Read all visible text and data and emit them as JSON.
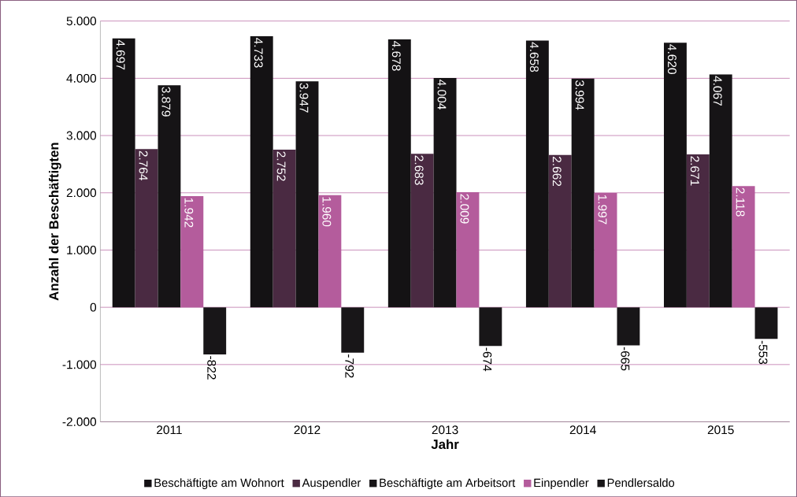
{
  "chart_data": {
    "type": "bar",
    "xlabel": "Jahr",
    "ylabel": "Anzahl der Beschäftigten",
    "categories": [
      "2011",
      "2012",
      "2013",
      "2014",
      "2015"
    ],
    "series": [
      {
        "name": "Beschäftigte am Wohnort",
        "color": "#141214",
        "values": [
          4697,
          4733,
          4678,
          4658,
          4620
        ],
        "value_labels": [
          "4.697",
          "4.733",
          "4.678",
          "4.658",
          "4.620"
        ]
      },
      {
        "name": "Auspendler",
        "color": "#4a2a42",
        "values": [
          2764,
          2752,
          2683,
          2662,
          2671
        ],
        "value_labels": [
          "2.764",
          "2.752",
          "2.683",
          "2.662",
          "2.671"
        ]
      },
      {
        "name": "Beschäftigte am Arbeitsort",
        "color": "#161416",
        "values": [
          3879,
          3947,
          4004,
          3994,
          4067
        ],
        "value_labels": [
          "3.879",
          "3.947",
          "4.004",
          "3.994",
          "4.067"
        ]
      },
      {
        "name": "Einpendler",
        "color": "#b45c9c",
        "values": [
          1942,
          1960,
          2009,
          1997,
          2118
        ],
        "value_labels": [
          "1.942",
          "1.960",
          "2.009",
          "1.997",
          "2.118"
        ]
      },
      {
        "name": "Pendlersaldo",
        "color": "#181618",
        "values": [
          -822,
          -792,
          -674,
          -665,
          -553
        ],
        "value_labels": [
          "-822",
          "-792",
          "-674",
          "-665",
          "-553"
        ]
      }
    ],
    "ylim": [
      -2000,
      5000
    ],
    "yticks": [
      {
        "value": -2000,
        "label": "-2.000"
      },
      {
        "value": -1000,
        "label": "-1.000"
      },
      0,
      {
        "value": 1000,
        "label": "1.000"
      },
      {
        "value": 2000,
        "label": "2.000"
      },
      {
        "value": 3000,
        "label": "3.000"
      },
      {
        "value": 4000,
        "label": "4.000"
      },
      {
        "value": 5000,
        "label": "5.000"
      }
    ],
    "grid": "y",
    "legend": "bottom"
  }
}
